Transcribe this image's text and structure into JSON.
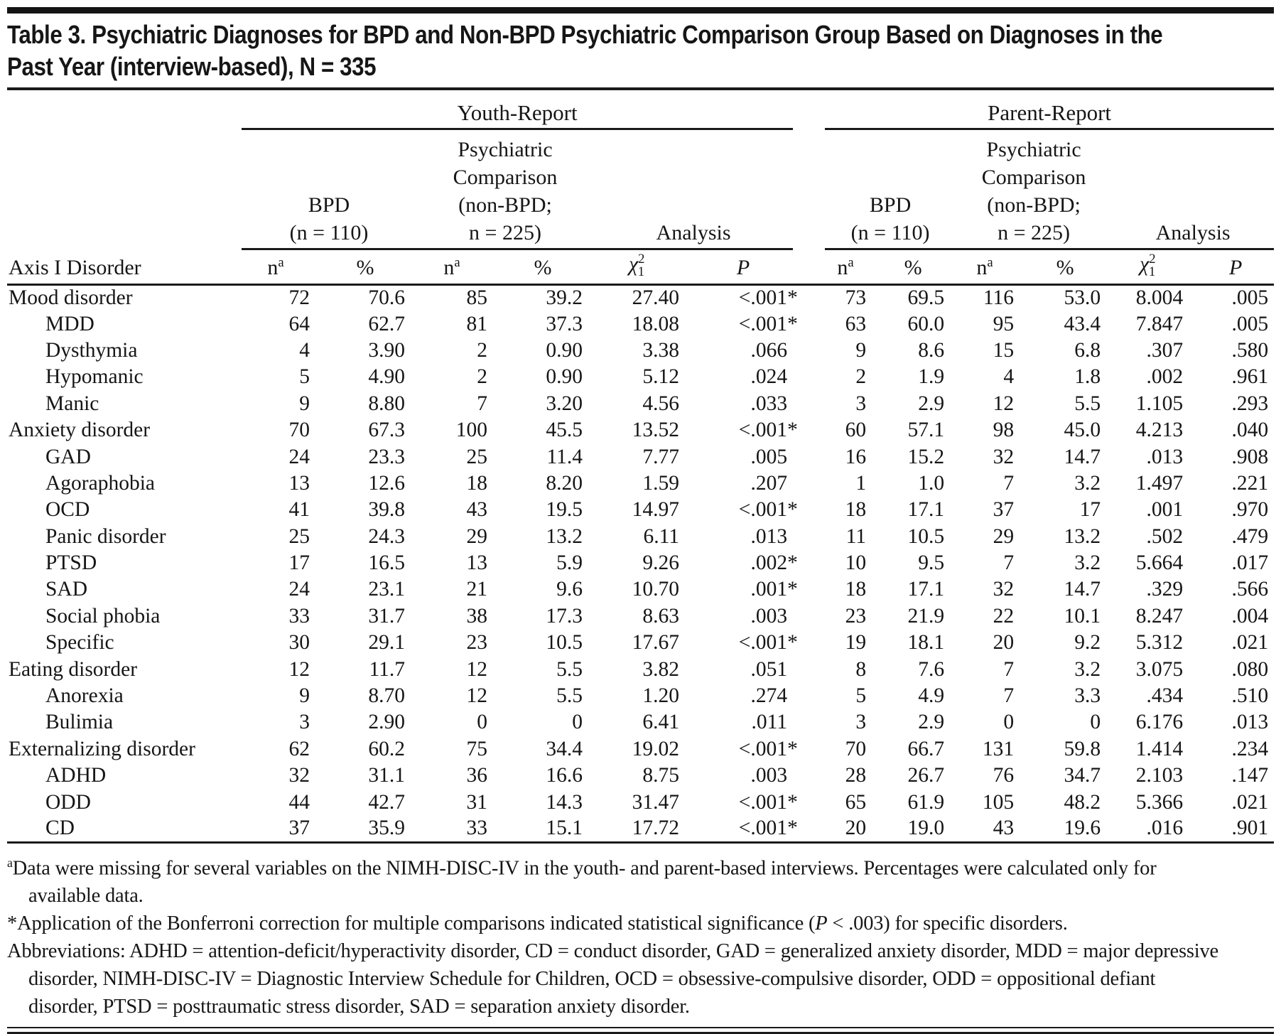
{
  "title": {
    "line1": "Table 3. Psychiatric Diagnoses for BPD and Non-BPD Psychiatric Comparison Group Based on Diagnoses in the",
    "line2": "Past Year (interview-based), N = 335"
  },
  "table": {
    "group_headers": {
      "youth": "Youth-Report",
      "parent": "Parent-Report"
    },
    "subgroup_headers": {
      "bpd_line1": "BPD",
      "bpd_line2": "(n = 110)",
      "comparison_line1": "Psychiatric",
      "comparison_line2": "Comparison",
      "comparison_line3": "(non-BPD;",
      "comparison_line4": "n = 225)",
      "analysis": "Analysis"
    },
    "column_headers": {
      "axis": "Axis I Disorder",
      "n_base": "n",
      "n_sup": "a",
      "pct": "%",
      "chi_base": "χ",
      "chi_sup": "2",
      "chi_sub": "1",
      "p": "P"
    },
    "rows": [
      {
        "label": "Mood disorder",
        "indent": false,
        "values": [
          "72",
          "70.6",
          "85",
          "39.2",
          "27.40",
          "<.001*",
          "73",
          "69.5",
          "116",
          "53.0",
          "8.004",
          ".005"
        ]
      },
      {
        "label": "MDD",
        "indent": true,
        "values": [
          "64",
          "62.7",
          "81",
          "37.3",
          "18.08",
          "<.001*",
          "63",
          "60.0",
          "95",
          "43.4",
          "7.847",
          ".005"
        ]
      },
      {
        "label": "Dysthymia",
        "indent": true,
        "values": [
          "4",
          "3.90",
          "2",
          "0.90",
          "3.38",
          ".066",
          "9",
          "8.6",
          "15",
          "6.8",
          ".307",
          ".580"
        ]
      },
      {
        "label": "Hypomanic",
        "indent": true,
        "values": [
          "5",
          "4.90",
          "2",
          "0.90",
          "5.12",
          ".024",
          "2",
          "1.9",
          "4",
          "1.8",
          ".002",
          ".961"
        ]
      },
      {
        "label": "Manic",
        "indent": true,
        "values": [
          "9",
          "8.80",
          "7",
          "3.20",
          "4.56",
          ".033",
          "3",
          "2.9",
          "12",
          "5.5",
          "1.105",
          ".293"
        ]
      },
      {
        "label": "Anxiety disorder",
        "indent": false,
        "values": [
          "70",
          "67.3",
          "100",
          "45.5",
          "13.52",
          "<.001*",
          "60",
          "57.1",
          "98",
          "45.0",
          "4.213",
          ".040"
        ]
      },
      {
        "label": "GAD",
        "indent": true,
        "values": [
          "24",
          "23.3",
          "25",
          "11.4",
          "7.77",
          ".005",
          "16",
          "15.2",
          "32",
          "14.7",
          ".013",
          ".908"
        ]
      },
      {
        "label": "Agoraphobia",
        "indent": true,
        "values": [
          "13",
          "12.6",
          "18",
          "8.20",
          "1.59",
          ".207",
          "1",
          "1.0",
          "7",
          "3.2",
          "1.497",
          ".221"
        ]
      },
      {
        "label": "OCD",
        "indent": true,
        "values": [
          "41",
          "39.8",
          "43",
          "19.5",
          "14.97",
          "<.001*",
          "18",
          "17.1",
          "37",
          "17",
          ".001",
          ".970"
        ]
      },
      {
        "label": "Panic disorder",
        "indent": true,
        "values": [
          "25",
          "24.3",
          "29",
          "13.2",
          "6.11",
          ".013",
          "11",
          "10.5",
          "29",
          "13.2",
          ".502",
          ".479"
        ]
      },
      {
        "label": "PTSD",
        "indent": true,
        "values": [
          "17",
          "16.5",
          "13",
          "5.9",
          "9.26",
          ".002*",
          "10",
          "9.5",
          "7",
          "3.2",
          "5.664",
          ".017"
        ]
      },
      {
        "label": "SAD",
        "indent": true,
        "values": [
          "24",
          "23.1",
          "21",
          "9.6",
          "10.70",
          ".001*",
          "18",
          "17.1",
          "32",
          "14.7",
          ".329",
          ".566"
        ]
      },
      {
        "label": "Social phobia",
        "indent": true,
        "values": [
          "33",
          "31.7",
          "38",
          "17.3",
          "8.63",
          ".003",
          "23",
          "21.9",
          "22",
          "10.1",
          "8.247",
          ".004"
        ]
      },
      {
        "label": "Specific",
        "indent": true,
        "values": [
          "30",
          "29.1",
          "23",
          "10.5",
          "17.67",
          "<.001*",
          "19",
          "18.1",
          "20",
          "9.2",
          "5.312",
          ".021"
        ]
      },
      {
        "label": "Eating disorder",
        "indent": false,
        "values": [
          "12",
          "11.7",
          "12",
          "5.5",
          "3.82",
          ".051",
          "8",
          "7.6",
          "7",
          "3.2",
          "3.075",
          ".080"
        ]
      },
      {
        "label": "Anorexia",
        "indent": true,
        "values": [
          "9",
          "8.70",
          "12",
          "5.5",
          "1.20",
          ".274",
          "5",
          "4.9",
          "7",
          "3.3",
          ".434",
          ".510"
        ]
      },
      {
        "label": "Bulimia",
        "indent": true,
        "values": [
          "3",
          "2.90",
          "0",
          "0",
          "6.41",
          ".011",
          "3",
          "2.9",
          "0",
          "0",
          "6.176",
          ".013"
        ]
      },
      {
        "label": "Externalizing disorder",
        "indent": false,
        "values": [
          "62",
          "60.2",
          "75",
          "34.4",
          "19.02",
          "<.001*",
          "70",
          "66.7",
          "131",
          "59.8",
          "1.414",
          ".234"
        ]
      },
      {
        "label": "ADHD",
        "indent": true,
        "values": [
          "32",
          "31.1",
          "36",
          "16.6",
          "8.75",
          ".003",
          "28",
          "26.7",
          "76",
          "34.7",
          "2.103",
          ".147"
        ]
      },
      {
        "label": "ODD",
        "indent": true,
        "values": [
          "44",
          "42.7",
          "31",
          "14.3",
          "31.47",
          "<.001*",
          "65",
          "61.9",
          "105",
          "48.2",
          "5.366",
          ".021"
        ]
      },
      {
        "label": "CD",
        "indent": true,
        "values": [
          "37",
          "35.9",
          "33",
          "15.1",
          "17.72",
          "<.001*",
          "20",
          "19.0",
          "43",
          "19.6",
          ".016",
          ".901"
        ]
      }
    ]
  },
  "footnotes": {
    "missing_data": {
      "marker": "a",
      "text": "Data were missing for several variables on the NIMH-DISC-IV in the youth- and parent-based interviews. Percentages were calculated only for available data."
    },
    "bonferroni": {
      "marker": "*",
      "pre": "Application of the Bonferroni correction for multiple comparisons indicated statistical significance (",
      "italic": "P",
      "post": " < .003) for specific disorders."
    },
    "abbreviations": "Abbreviations: ADHD = attention-deficit/hyperactivity disorder, CD = conduct disorder, GAD = generalized anxiety disorder, MDD = major depressive disorder, NIMH-DISC-IV = Diagnostic Interview Schedule for Children, OCD = obsessive-compulsive disorder, ODD = oppositional defiant disorder, PTSD = posttraumatic stress disorder, SAD = separation anxiety disorder."
  }
}
